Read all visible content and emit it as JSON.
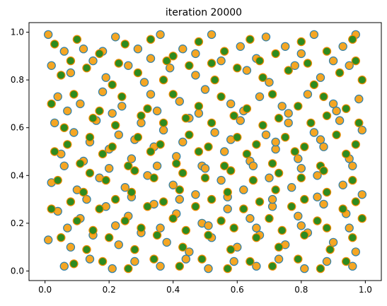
{
  "chart_data": {
    "type": "scatter",
    "title": "iteration 20000",
    "xlabel": "",
    "ylabel": "",
    "xlim": [
      -0.05,
      1.05
    ],
    "ylim": [
      -0.04,
      1.04
    ],
    "xticks": [
      0.0,
      0.2,
      0.4,
      0.6,
      0.8,
      1.0
    ],
    "yticks": [
      0.0,
      0.2,
      0.4,
      0.6,
      0.8,
      1.0
    ],
    "xtick_labels": [
      "0.0",
      "0.2",
      "0.4",
      "0.6",
      "0.8",
      "1.0"
    ],
    "ytick_labels": [
      "0.0",
      "0.2",
      "0.4",
      "0.6",
      "0.8",
      "1.0"
    ],
    "grid": false,
    "legend": "none",
    "series": [
      {
        "marker_fill": "#f5a623",
        "marker_edge": "#2f7fa8",
        "points": [
          [
            0.01,
            0.99
          ],
          [
            0.06,
            0.92
          ],
          [
            0.12,
            0.93
          ],
          [
            0.22,
            0.98
          ],
          [
            0.29,
            0.93
          ],
          [
            0.36,
            0.99
          ],
          [
            0.43,
            0.93
          ],
          [
            0.52,
            0.99
          ],
          [
            0.61,
            0.94
          ],
          [
            0.69,
            0.98
          ],
          [
            0.75,
            0.94
          ],
          [
            0.84,
            0.99
          ],
          [
            0.93,
            0.94
          ],
          [
            0.97,
            0.99
          ],
          [
            0.02,
            0.86
          ],
          [
            0.08,
            0.83
          ],
          [
            0.15,
            0.88
          ],
          [
            0.19,
            0.81
          ],
          [
            0.26,
            0.86
          ],
          [
            0.31,
            0.79
          ],
          [
            0.39,
            0.85
          ],
          [
            0.47,
            0.82
          ],
          [
            0.55,
            0.88
          ],
          [
            0.63,
            0.84
          ],
          [
            0.7,
            0.79
          ],
          [
            0.78,
            0.86
          ],
          [
            0.86,
            0.81
          ],
          [
            0.95,
            0.86
          ],
          [
            0.04,
            0.73
          ],
          [
            0.11,
            0.7
          ],
          [
            0.18,
            0.75
          ],
          [
            0.24,
            0.69
          ],
          [
            0.33,
            0.74
          ],
          [
            0.42,
            0.71
          ],
          [
            0.5,
            0.76
          ],
          [
            0.58,
            0.7
          ],
          [
            0.67,
            0.73
          ],
          [
            0.74,
            0.69
          ],
          [
            0.82,
            0.74
          ],
          [
            0.9,
            0.7
          ],
          [
            0.98,
            0.72
          ],
          [
            0.03,
            0.62
          ],
          [
            0.09,
            0.58
          ],
          [
            0.16,
            0.63
          ],
          [
            0.23,
            0.57
          ],
          [
            0.3,
            0.62
          ],
          [
            0.37,
            0.59
          ],
          [
            0.45,
            0.64
          ],
          [
            0.53,
            0.58
          ],
          [
            0.61,
            0.63
          ],
          [
            0.69,
            0.57
          ],
          [
            0.76,
            0.62
          ],
          [
            0.84,
            0.58
          ],
          [
            0.92,
            0.63
          ],
          [
            0.99,
            0.59
          ],
          [
            0.05,
            0.49
          ],
          [
            0.12,
            0.46
          ],
          [
            0.2,
            0.51
          ],
          [
            0.27,
            0.47
          ],
          [
            0.34,
            0.52
          ],
          [
            0.41,
            0.48
          ],
          [
            0.49,
            0.44
          ],
          [
            0.56,
            0.5
          ],
          [
            0.64,
            0.46
          ],
          [
            0.72,
            0.51
          ],
          [
            0.79,
            0.47
          ],
          [
            0.87,
            0.52
          ],
          [
            0.95,
            0.47
          ],
          [
            0.02,
            0.37
          ],
          [
            0.1,
            0.34
          ],
          [
            0.17,
            0.39
          ],
          [
            0.25,
            0.35
          ],
          [
            0.32,
            0.4
          ],
          [
            0.4,
            0.36
          ],
          [
            0.47,
            0.32
          ],
          [
            0.55,
            0.38
          ],
          [
            0.62,
            0.34
          ],
          [
            0.7,
            0.39
          ],
          [
            0.77,
            0.35
          ],
          [
            0.85,
            0.4
          ],
          [
            0.93,
            0.36
          ],
          [
            0.99,
            0.32
          ],
          [
            0.04,
            0.25
          ],
          [
            0.11,
            0.22
          ],
          [
            0.19,
            0.27
          ],
          [
            0.26,
            0.23
          ],
          [
            0.34,
            0.28
          ],
          [
            0.41,
            0.24
          ],
          [
            0.49,
            0.2
          ],
          [
            0.57,
            0.26
          ],
          [
            0.64,
            0.22
          ],
          [
            0.71,
            0.27
          ],
          [
            0.79,
            0.23
          ],
          [
            0.87,
            0.28
          ],
          [
            0.94,
            0.24
          ],
          [
            0.01,
            0.13
          ],
          [
            0.08,
            0.1
          ],
          [
            0.15,
            0.15
          ],
          [
            0.23,
            0.11
          ],
          [
            0.3,
            0.16
          ],
          [
            0.38,
            0.12
          ],
          [
            0.45,
            0.08
          ],
          [
            0.52,
            0.14
          ],
          [
            0.6,
            0.1
          ],
          [
            0.67,
            0.15
          ],
          [
            0.75,
            0.11
          ],
          [
            0.82,
            0.16
          ],
          [
            0.9,
            0.12
          ],
          [
            0.97,
            0.08
          ],
          [
            0.06,
            0.02
          ],
          [
            0.14,
            0.05
          ],
          [
            0.21,
            0.01
          ],
          [
            0.28,
            0.04
          ],
          [
            0.36,
            0.02
          ],
          [
            0.44,
            0.05
          ],
          [
            0.51,
            0.01
          ],
          [
            0.59,
            0.04
          ],
          [
            0.66,
            0.02
          ],
          [
            0.73,
            0.05
          ],
          [
            0.81,
            0.01
          ],
          [
            0.88,
            0.04
          ],
          [
            0.96,
            0.02
          ],
          [
            0.07,
            0.67
          ],
          [
            0.21,
            0.66
          ],
          [
            0.35,
            0.67
          ],
          [
            0.48,
            0.66
          ],
          [
            0.62,
            0.67
          ],
          [
            0.76,
            0.66
          ],
          [
            0.91,
            0.67
          ],
          [
            0.14,
            0.54
          ],
          [
            0.28,
            0.55
          ],
          [
            0.43,
            0.54
          ],
          [
            0.58,
            0.55
          ],
          [
            0.72,
            0.54
          ],
          [
            0.86,
            0.55
          ],
          [
            0.06,
            0.44
          ],
          [
            0.2,
            0.43
          ],
          [
            0.35,
            0.44
          ],
          [
            0.5,
            0.43
          ],
          [
            0.65,
            0.44
          ],
          [
            0.8,
            0.43
          ],
          [
            0.96,
            0.44
          ],
          [
            0.13,
            0.3
          ],
          [
            0.27,
            0.31
          ],
          [
            0.42,
            0.3
          ],
          [
            0.57,
            0.31
          ],
          [
            0.71,
            0.3
          ],
          [
            0.85,
            0.31
          ],
          [
            0.07,
            0.18
          ],
          [
            0.22,
            0.19
          ],
          [
            0.36,
            0.18
          ],
          [
            0.51,
            0.19
          ],
          [
            0.66,
            0.18
          ],
          [
            0.8,
            0.19
          ],
          [
            0.95,
            0.18
          ],
          [
            0.18,
            0.92
          ],
          [
            0.33,
            0.89
          ],
          [
            0.47,
            0.91
          ],
          [
            0.66,
            0.89
          ],
          [
            0.8,
            0.91
          ],
          [
            0.9,
            0.88
          ]
        ]
      },
      {
        "marker_fill": "#2e8b1f",
        "marker_edge": "#f08a00",
        "points": [
          [
            0.03,
            0.95
          ],
          [
            0.1,
            0.97
          ],
          [
            0.17,
            0.91
          ],
          [
            0.25,
            0.95
          ],
          [
            0.33,
            0.97
          ],
          [
            0.4,
            0.9
          ],
          [
            0.48,
            0.96
          ],
          [
            0.56,
            0.92
          ],
          [
            0.64,
            0.97
          ],
          [
            0.72,
            0.91
          ],
          [
            0.8,
            0.96
          ],
          [
            0.88,
            0.92
          ],
          [
            0.96,
            0.97
          ],
          [
            0.05,
            0.82
          ],
          [
            0.13,
            0.85
          ],
          [
            0.21,
            0.78
          ],
          [
            0.29,
            0.83
          ],
          [
            0.37,
            0.8
          ],
          [
            0.45,
            0.86
          ],
          [
            0.53,
            0.8
          ],
          [
            0.6,
            0.85
          ],
          [
            0.68,
            0.81
          ],
          [
            0.76,
            0.84
          ],
          [
            0.84,
            0.78
          ],
          [
            0.92,
            0.83
          ],
          [
            0.99,
            0.8
          ],
          [
            0.02,
            0.7
          ],
          [
            0.09,
            0.74
          ],
          [
            0.17,
            0.67
          ],
          [
            0.24,
            0.73
          ],
          [
            0.32,
            0.68
          ],
          [
            0.4,
            0.74
          ],
          [
            0.48,
            0.69
          ],
          [
            0.55,
            0.73
          ],
          [
            0.63,
            0.68
          ],
          [
            0.71,
            0.74
          ],
          [
            0.79,
            0.69
          ],
          [
            0.87,
            0.73
          ],
          [
            0.94,
            0.68
          ],
          [
            0.06,
            0.6
          ],
          [
            0.14,
            0.56
          ],
          [
            0.22,
            0.61
          ],
          [
            0.29,
            0.56
          ],
          [
            0.37,
            0.62
          ],
          [
            0.45,
            0.57
          ],
          [
            0.52,
            0.62
          ],
          [
            0.6,
            0.56
          ],
          [
            0.68,
            0.61
          ],
          [
            0.75,
            0.56
          ],
          [
            0.83,
            0.62
          ],
          [
            0.91,
            0.57
          ],
          [
            0.98,
            0.62
          ],
          [
            0.03,
            0.5
          ],
          [
            0.11,
            0.45
          ],
          [
            0.18,
            0.49
          ],
          [
            0.26,
            0.44
          ],
          [
            0.33,
            0.5
          ],
          [
            0.41,
            0.45
          ],
          [
            0.48,
            0.5
          ],
          [
            0.56,
            0.44
          ],
          [
            0.63,
            0.49
          ],
          [
            0.71,
            0.45
          ],
          [
            0.78,
            0.5
          ],
          [
            0.86,
            0.44
          ],
          [
            0.94,
            0.49
          ],
          [
            0.04,
            0.38
          ],
          [
            0.12,
            0.33
          ],
          [
            0.19,
            0.38
          ],
          [
            0.27,
            0.33
          ],
          [
            0.34,
            0.39
          ],
          [
            0.42,
            0.34
          ],
          [
            0.5,
            0.39
          ],
          [
            0.57,
            0.33
          ],
          [
            0.65,
            0.38
          ],
          [
            0.72,
            0.34
          ],
          [
            0.8,
            0.39
          ],
          [
            0.88,
            0.33
          ],
          [
            0.96,
            0.38
          ],
          [
            0.02,
            0.26
          ],
          [
            0.1,
            0.21
          ],
          [
            0.17,
            0.26
          ],
          [
            0.25,
            0.21
          ],
          [
            0.32,
            0.27
          ],
          [
            0.4,
            0.22
          ],
          [
            0.47,
            0.27
          ],
          [
            0.55,
            0.21
          ],
          [
            0.62,
            0.26
          ],
          [
            0.7,
            0.22
          ],
          [
            0.77,
            0.27
          ],
          [
            0.85,
            0.21
          ],
          [
            0.93,
            0.26
          ],
          [
            0.99,
            0.22
          ],
          [
            0.05,
            0.14
          ],
          [
            0.13,
            0.09
          ],
          [
            0.2,
            0.14
          ],
          [
            0.28,
            0.09
          ],
          [
            0.35,
            0.15
          ],
          [
            0.43,
            0.1
          ],
          [
            0.51,
            0.15
          ],
          [
            0.58,
            0.09
          ],
          [
            0.66,
            0.14
          ],
          [
            0.73,
            0.1
          ],
          [
            0.81,
            0.15
          ],
          [
            0.89,
            0.09
          ],
          [
            0.96,
            0.14
          ],
          [
            0.09,
            0.03
          ],
          [
            0.18,
            0.04
          ],
          [
            0.26,
            0.01
          ],
          [
            0.34,
            0.05
          ],
          [
            0.42,
            0.02
          ],
          [
            0.49,
            0.05
          ],
          [
            0.57,
            0.01
          ],
          [
            0.64,
            0.04
          ],
          [
            0.71,
            0.02
          ],
          [
            0.79,
            0.05
          ],
          [
            0.86,
            0.01
          ],
          [
            0.94,
            0.04
          ],
          [
            0.08,
            0.88
          ],
          [
            0.23,
            0.87
          ],
          [
            0.38,
            0.88
          ],
          [
            0.52,
            0.87
          ],
          [
            0.67,
            0.88
          ],
          [
            0.82,
            0.87
          ],
          [
            0.97,
            0.88
          ],
          [
            0.15,
            0.64
          ],
          [
            0.3,
            0.65
          ],
          [
            0.44,
            0.64
          ],
          [
            0.59,
            0.65
          ],
          [
            0.73,
            0.64
          ],
          [
            0.88,
            0.65
          ],
          [
            0.07,
            0.53
          ],
          [
            0.21,
            0.52
          ],
          [
            0.36,
            0.53
          ],
          [
            0.51,
            0.52
          ],
          [
            0.66,
            0.53
          ],
          [
            0.81,
            0.52
          ],
          [
            0.97,
            0.53
          ],
          [
            0.14,
            0.41
          ],
          [
            0.28,
            0.42
          ],
          [
            0.43,
            0.41
          ],
          [
            0.58,
            0.42
          ],
          [
            0.73,
            0.41
          ],
          [
            0.87,
            0.42
          ],
          [
            0.08,
            0.29
          ],
          [
            0.22,
            0.3
          ],
          [
            0.37,
            0.29
          ],
          [
            0.52,
            0.3
          ],
          [
            0.67,
            0.29
          ],
          [
            0.81,
            0.3
          ],
          [
            0.97,
            0.29
          ],
          [
            0.15,
            0.17
          ],
          [
            0.3,
            0.18
          ],
          [
            0.44,
            0.17
          ],
          [
            0.59,
            0.18
          ],
          [
            0.74,
            0.17
          ],
          [
            0.88,
            0.18
          ]
        ]
      }
    ]
  }
}
